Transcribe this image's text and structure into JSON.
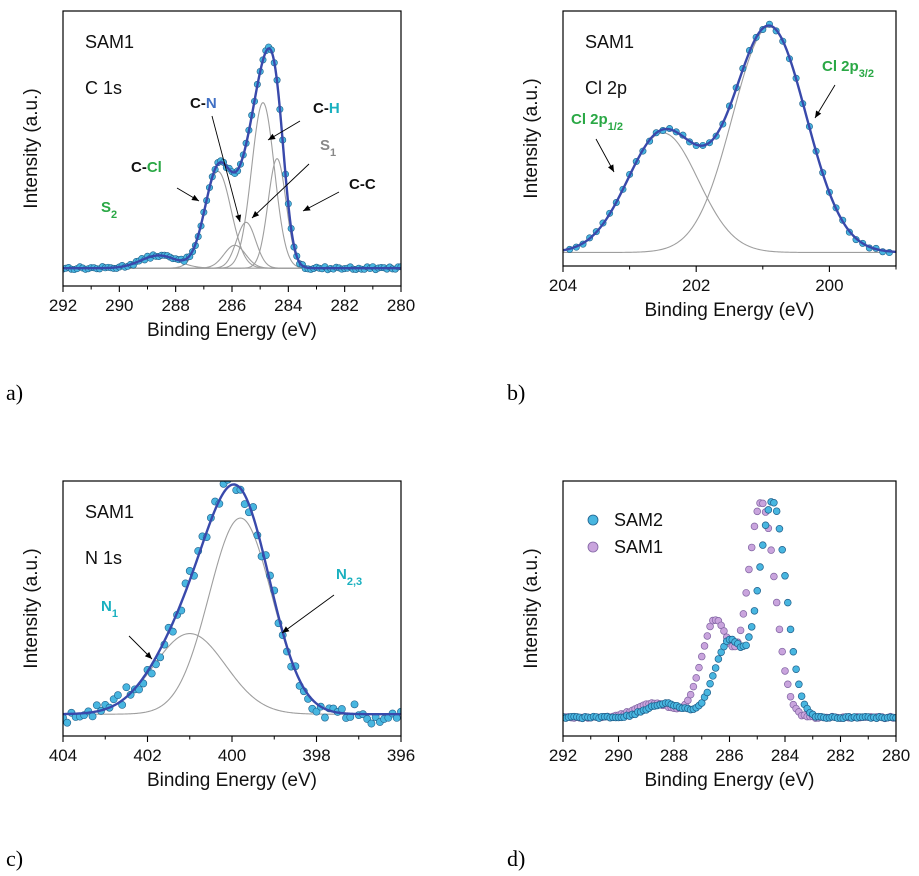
{
  "colors": {
    "fit": "#3949ab",
    "marker": "#48b6e0",
    "marker_edge": "#1f5f8b",
    "component": "#9e9e9e",
    "sam1_marker": "#c9a4dd",
    "sam1_edge": "#8064a2",
    "green": "#2aa845",
    "blue": "#3f6fc4",
    "cyan": "#19b0bf",
    "gray": "#888888",
    "black": "#111111"
  },
  "panels": [
    {
      "id": "a",
      "letter": "a)",
      "sample": "SAM1",
      "region": "C 1s",
      "xlabel": "Binding Energy (eV)",
      "ylabel": "Intensity (a.u.)",
      "xlim": [
        292,
        280
      ],
      "xticks": [
        292,
        290,
        288,
        286,
        284,
        282,
        280
      ],
      "annotations": [
        {
          "parts": [
            {
              "t": "S",
              "c": "green"
            },
            {
              "t": "2",
              "c": "green",
              "sub": true
            }
          ]
        },
        {
          "parts": [
            {
              "t": "C-",
              "c": "black"
            },
            {
              "t": "Cl",
              "c": "green"
            }
          ]
        },
        {
          "parts": [
            {
              "t": "C-",
              "c": "black"
            },
            {
              "t": "N",
              "c": "blue"
            }
          ]
        },
        {
          "parts": [
            {
              "t": "C-",
              "c": "black"
            },
            {
              "t": "H",
              "c": "cyan"
            }
          ]
        },
        {
          "parts": [
            {
              "t": "S",
              "c": "gray"
            },
            {
              "t": "1",
              "c": "gray",
              "sub": true
            }
          ]
        },
        {
          "parts": [
            {
              "t": "C-C",
              "c": "black"
            }
          ]
        }
      ]
    },
    {
      "id": "b",
      "letter": "b)",
      "sample": "SAM1",
      "region": "Cl 2p",
      "xlabel": "Binding Energy (eV)",
      "ylabel": "Intensity (a.u.)",
      "xlim": [
        204,
        199
      ],
      "xticks": [
        204,
        202,
        200
      ],
      "annotations": [
        {
          "parts": [
            {
              "t": "Cl 2p",
              "c": "green"
            },
            {
              "t": "1/2",
              "c": "green",
              "sub": true
            }
          ]
        },
        {
          "parts": [
            {
              "t": "Cl 2p",
              "c": "green"
            },
            {
              "t": "3/2",
              "c": "green",
              "sub": true
            }
          ]
        }
      ]
    },
    {
      "id": "c",
      "letter": "c)",
      "sample": "SAM1",
      "region": "N 1s",
      "xlabel": "Binding Energy (eV)",
      "ylabel": "Intensity (a.u.)",
      "xlim": [
        404,
        396
      ],
      "xticks": [
        404,
        402,
        400,
        398,
        396
      ],
      "annotations": [
        {
          "parts": [
            {
              "t": "N",
              "c": "cyan"
            },
            {
              "t": "1",
              "c": "cyan",
              "sub": true
            }
          ]
        },
        {
          "parts": [
            {
              "t": "N",
              "c": "cyan"
            },
            {
              "t": "2,3",
              "c": "cyan",
              "sub": true
            }
          ]
        }
      ]
    },
    {
      "id": "d",
      "letter": "d)",
      "sample": "",
      "region": "",
      "xlabel": "Binding Energy (eV)",
      "ylabel": "Intensity (a.u.)",
      "xlim": [
        292,
        280
      ],
      "xticks": [
        292,
        290,
        288,
        286,
        284,
        282,
        280
      ],
      "legend": [
        "SAM2",
        "SAM1"
      ],
      "annotations": []
    }
  ],
  "chart_data": [
    {
      "type": "scatter",
      "panel": "a",
      "xlabel": "Binding Energy (eV)",
      "ylabel": "Intensity (a.u.)",
      "xlim": [
        292,
        280
      ],
      "peaks": [
        {
          "name": "C-C",
          "center": 284.4,
          "fwhm": 0.75,
          "height": 0.43
        },
        {
          "name": "C-H",
          "center": 284.9,
          "fwhm": 0.95,
          "height": 0.65
        },
        {
          "name": "S1",
          "center": 285.5,
          "fwhm": 0.8,
          "height": 0.18
        },
        {
          "name": "C-N",
          "center": 285.9,
          "fwhm": 0.9,
          "height": 0.09
        },
        {
          "name": "C-Cl",
          "center": 286.5,
          "fwhm": 1.1,
          "height": 0.38
        },
        {
          "name": "S2",
          "center": 288.6,
          "fwhm": 1.5,
          "height": 0.05
        }
      ],
      "baseline": 0.01,
      "measured_range": [
        292,
        280
      ],
      "measured_step": 0.1
    },
    {
      "type": "scatter",
      "panel": "b",
      "xlabel": "Binding Energy (eV)",
      "ylabel": "Intensity (a.u.)",
      "xlim": [
        204,
        199
      ],
      "peaks": [
        {
          "name": "Cl 2p1/2",
          "center": 202.5,
          "fwhm": 1.25,
          "height": 0.53
        },
        {
          "name": "Cl 2p3/2",
          "center": 200.9,
          "fwhm": 1.3,
          "height": 1.0
        }
      ],
      "baseline": 0.0,
      "measured_range": [
        203.9,
        199.1
      ],
      "measured_step": 0.1
    },
    {
      "type": "scatter",
      "panel": "c",
      "xlabel": "Binding Energy (eV)",
      "ylabel": "Intensity (a.u.)",
      "xlim": [
        404,
        396
      ],
      "peaks": [
        {
          "name": "N1",
          "center": 401.0,
          "fwhm": 2.0,
          "height": 0.37
        },
        {
          "name": "N2,3",
          "center": 399.8,
          "fwhm": 1.75,
          "height": 0.9
        }
      ],
      "baseline": 0.0,
      "measured_range": [
        404,
        396
      ],
      "measured_step": 0.1
    },
    {
      "type": "scatter",
      "panel": "d",
      "xlabel": "Binding Energy (eV)",
      "ylabel": "Intensity (a.u.)",
      "xlim": [
        292,
        280
      ],
      "series": [
        {
          "name": "SAM2",
          "peaks": [
            {
              "center": 284.45,
              "fwhm": 1.15,
              "height": 0.93
            },
            {
              "center": 286.0,
              "fwhm": 1.25,
              "height": 0.33
            },
            {
              "center": 288.3,
              "fwhm": 1.6,
              "height": 0.06
            }
          ],
          "baseline": 0.05
        },
        {
          "name": "SAM1",
          "peaks": [
            {
              "center": 284.85,
              "fwhm": 1.15,
              "height": 0.93
            },
            {
              "center": 286.5,
              "fwhm": 1.2,
              "height": 0.42
            },
            {
              "center": 288.7,
              "fwhm": 1.6,
              "height": 0.06
            }
          ],
          "baseline": 0.05
        }
      ],
      "measured_range": [
        292,
        280
      ],
      "measured_step": 0.1
    }
  ]
}
